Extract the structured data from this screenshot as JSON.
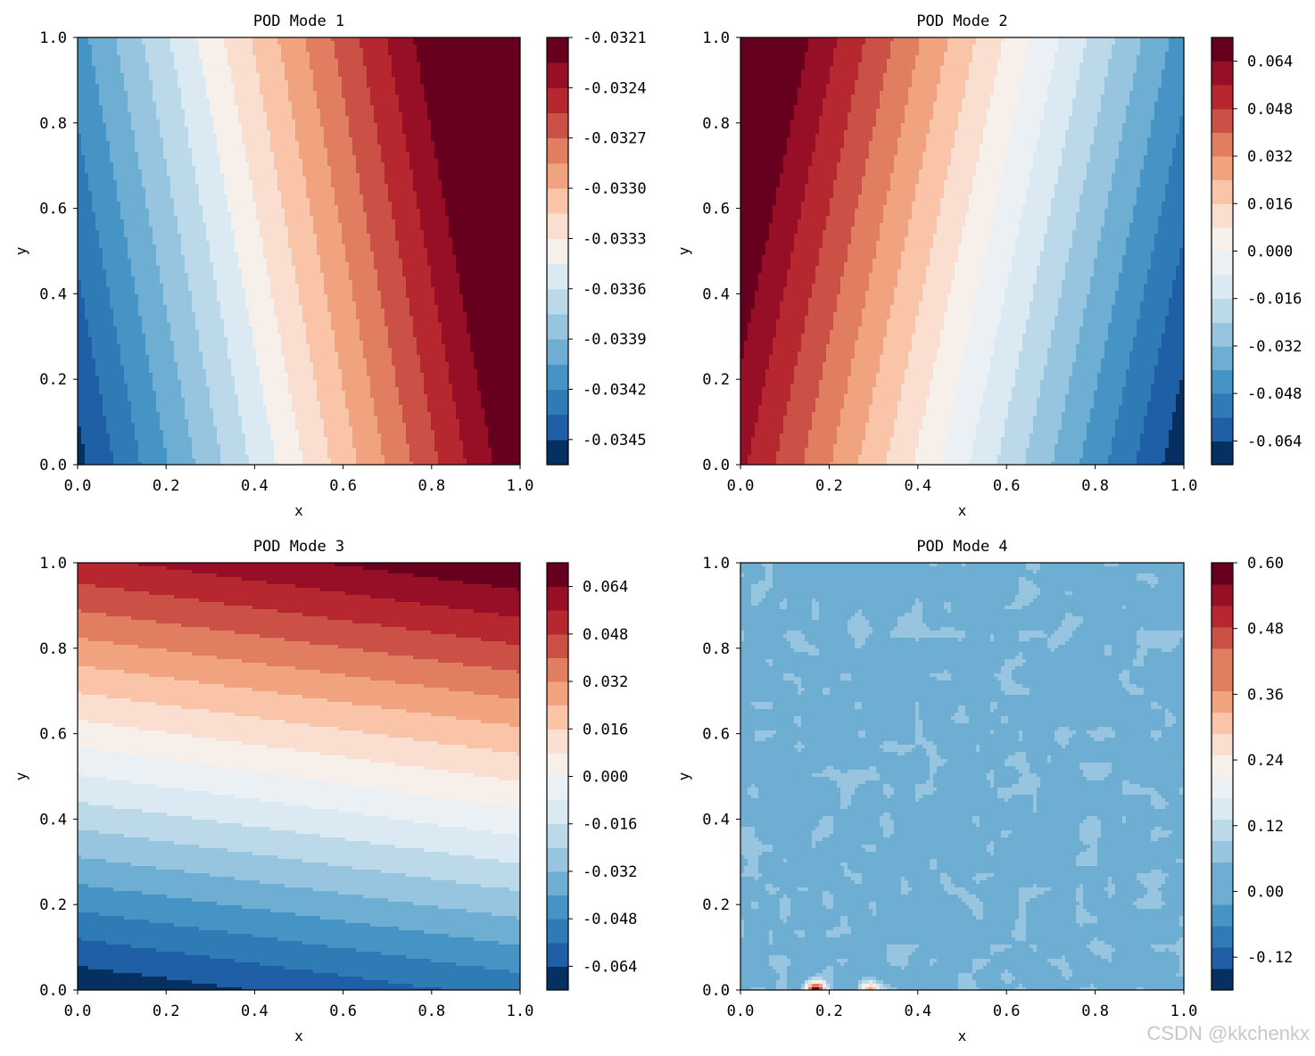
{
  "watermark": "CSDN @kkchenkx",
  "colors": {
    "levels": [
      "#053061",
      "#1f5fa6",
      "#2f7bb6",
      "#4693c5",
      "#6eaed2",
      "#97c5df",
      "#bcd9ea",
      "#dbe9f2",
      "#ebf0f4",
      "#f7efea",
      "#fadfd0",
      "#f9c4a8",
      "#f1a37f",
      "#e17e61",
      "#cb5147",
      "#b7272f",
      "#960f27",
      "#67001f"
    ]
  },
  "chart_data": [
    {
      "id": "mode1",
      "type": "contourf",
      "title": "POD Mode 1",
      "xlabel": "x",
      "ylabel": "y",
      "xlim": [
        0,
        1
      ],
      "ylim": [
        0,
        1
      ],
      "xticks": [
        "0.0",
        "0.2",
        "0.4",
        "0.6",
        "0.8",
        "1.0"
      ],
      "yticks": [
        "0.0",
        "0.2",
        "0.4",
        "0.6",
        "0.8",
        "1.0"
      ],
      "field": {
        "kind": "linear",
        "c0": -0.03455,
        "cx": 0.00245,
        "cy": 0.00044
      },
      "levels": [
        -0.0345,
        -0.0342,
        -0.0339,
        -0.0336,
        -0.0333,
        -0.033,
        -0.0327,
        -0.0324,
        -0.0321
      ],
      "colorbar": {
        "min": -0.03465,
        "max": -0.0321,
        "step": 0.00015,
        "ticks": [
          -0.0345,
          -0.0342,
          -0.0339,
          -0.0336,
          -0.0333,
          -0.033,
          -0.0327,
          -0.0324,
          -0.0321
        ],
        "tick_labels": [
          "-0.0345",
          "-0.0342",
          "-0.0339",
          "-0.0336",
          "-0.0333",
          "-0.0330",
          "-0.0327",
          "-0.0324",
          "-0.0321"
        ]
      }
    },
    {
      "id": "mode2",
      "type": "contourf",
      "title": "POD Mode 2",
      "xlabel": "x",
      "ylabel": "y",
      "xlim": [
        0,
        1
      ],
      "ylim": [
        0,
        1
      ],
      "xticks": [
        "0.0",
        "0.2",
        "0.4",
        "0.6",
        "0.8",
        "1.0"
      ],
      "yticks": [
        "0.0",
        "0.2",
        "0.4",
        "0.6",
        "0.8",
        "1.0"
      ],
      "field": {
        "kind": "linear",
        "c0": 0.058,
        "cx": -0.128,
        "cy": 0.026
      },
      "levels": [
        -0.064,
        -0.048,
        -0.032,
        -0.016,
        0.0,
        0.016,
        0.032,
        0.048,
        0.064
      ],
      "colorbar": {
        "min": -0.072,
        "max": 0.072,
        "step": 0.008,
        "ticks": [
          -0.064,
          -0.048,
          -0.032,
          -0.016,
          0.0,
          0.016,
          0.032,
          0.048,
          0.064
        ],
        "tick_labels": [
          "-0.064",
          "-0.048",
          "-0.032",
          "-0.016",
          "0.000",
          "0.016",
          "0.032",
          "0.048",
          "0.064"
        ]
      }
    },
    {
      "id": "mode3",
      "type": "contourf",
      "title": "POD Mode 3",
      "xlabel": "x",
      "ylabel": "y",
      "xlim": [
        0,
        1
      ],
      "ylim": [
        0,
        1
      ],
      "xticks": [
        "0.0",
        "0.2",
        "0.4",
        "0.6",
        "0.8",
        "1.0"
      ],
      "yticks": [
        "0.0",
        "0.2",
        "0.4",
        "0.6",
        "0.8",
        "1.0"
      ],
      "field": {
        "kind": "linear",
        "c0": -0.071,
        "cx": 0.018,
        "cy": 0.125
      },
      "levels": [
        -0.064,
        -0.048,
        -0.032,
        -0.016,
        0.0,
        0.016,
        0.032,
        0.048,
        0.064
      ],
      "colorbar": {
        "min": -0.072,
        "max": 0.072,
        "step": 0.008,
        "ticks": [
          -0.064,
          -0.048,
          -0.032,
          -0.016,
          0.0,
          0.016,
          0.032,
          0.048,
          0.064
        ],
        "tick_labels": [
          "-0.064",
          "-0.048",
          "-0.032",
          "-0.016",
          "0.000",
          "0.016",
          "0.032",
          "0.048",
          "0.064"
        ]
      }
    },
    {
      "id": "mode4",
      "type": "contourf",
      "title": "POD Mode 4",
      "xlabel": "x",
      "ylabel": "y",
      "xlim": [
        0,
        1
      ],
      "ylim": [
        0,
        1
      ],
      "xticks": [
        "0.0",
        "0.2",
        "0.4",
        "0.6",
        "0.8",
        "1.0"
      ],
      "yticks": [
        "0.0",
        "0.2",
        "0.4",
        "0.6",
        "0.8",
        "1.0"
      ],
      "field": {
        "kind": "noise",
        "base": 0.04,
        "amp": 0.04,
        "seed": 7,
        "spikes": [
          {
            "x": 0.17,
            "y": 0.0,
            "value": 0.56
          },
          {
            "x": 0.29,
            "y": 0.0,
            "value": 0.3
          }
        ]
      },
      "levels": [
        -0.12,
        0.0,
        0.12,
        0.24,
        0.36,
        0.48,
        0.6
      ],
      "colorbar": {
        "min": -0.18,
        "max": 0.6,
        "step": 0.04,
        "ticks": [
          -0.12,
          0.0,
          0.12,
          0.24,
          0.36,
          0.48,
          0.6
        ],
        "tick_labels": [
          "-0.12",
          "0.00",
          "0.12",
          "0.24",
          "0.36",
          "0.48",
          "0.60"
        ]
      }
    }
  ]
}
